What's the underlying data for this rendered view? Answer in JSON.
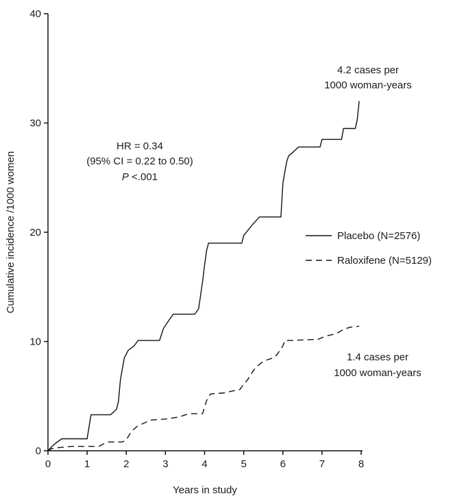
{
  "chart_data": {
    "type": "line",
    "title": "",
    "xlabel": "Years in study",
    "ylabel": "Cumulative incidence /1000 women",
    "xlim": [
      0,
      8
    ],
    "ylim": [
      0,
      40
    ],
    "x_ticks": [
      "0",
      "1",
      "2",
      "3",
      "4",
      "5",
      "6",
      "7",
      "8"
    ],
    "y_ticks": [
      "0",
      "10",
      "20",
      "30",
      "40"
    ],
    "grid": false,
    "legend_position": "right",
    "series": [
      {
        "name": "Placebo (N=2576)",
        "style": "solid",
        "color": "#111111",
        "points": [
          [
            0,
            0
          ],
          [
            0.1,
            0.4
          ],
          [
            0.2,
            0.7
          ],
          [
            0.35,
            1.1
          ],
          [
            1.0,
            1.1
          ],
          [
            1.05,
            2.2
          ],
          [
            1.1,
            3.3
          ],
          [
            1.6,
            3.3
          ],
          [
            1.75,
            3.8
          ],
          [
            1.8,
            4.5
          ],
          [
            1.85,
            6.5
          ],
          [
            1.9,
            7.5
          ],
          [
            1.95,
            8.5
          ],
          [
            2.05,
            9.2
          ],
          [
            2.2,
            9.6
          ],
          [
            2.3,
            10.1
          ],
          [
            2.85,
            10.1
          ],
          [
            2.95,
            11.2
          ],
          [
            3.1,
            12.0
          ],
          [
            3.2,
            12.5
          ],
          [
            3.75,
            12.5
          ],
          [
            3.85,
            13.0
          ],
          [
            3.95,
            15.5
          ],
          [
            4.0,
            17.0
          ],
          [
            4.05,
            18.3
          ],
          [
            4.1,
            19.0
          ],
          [
            4.95,
            19.0
          ],
          [
            5.0,
            19.7
          ],
          [
            5.2,
            20.6
          ],
          [
            5.4,
            21.4
          ],
          [
            5.95,
            21.4
          ],
          [
            6.0,
            24.5
          ],
          [
            6.05,
            25.5
          ],
          [
            6.1,
            26.5
          ],
          [
            6.15,
            27.0
          ],
          [
            6.25,
            27.3
          ],
          [
            6.4,
            27.8
          ],
          [
            6.95,
            27.8
          ],
          [
            7.0,
            28.5
          ],
          [
            7.5,
            28.5
          ],
          [
            7.55,
            29.5
          ],
          [
            7.85,
            29.5
          ],
          [
            7.9,
            30.3
          ],
          [
            7.95,
            32.0
          ]
        ]
      },
      {
        "name": "Raloxifene (N=5129)",
        "style": "dashed",
        "color": "#111111",
        "points": [
          [
            0,
            0
          ],
          [
            0.1,
            0.2
          ],
          [
            0.3,
            0.3
          ],
          [
            0.6,
            0.4
          ],
          [
            1.3,
            0.4
          ],
          [
            1.4,
            0.6
          ],
          [
            1.55,
            0.8
          ],
          [
            1.9,
            0.8
          ],
          [
            2.0,
            1.0
          ],
          [
            2.1,
            1.6
          ],
          [
            2.2,
            2.0
          ],
          [
            2.3,
            2.3
          ],
          [
            2.5,
            2.6
          ],
          [
            2.6,
            2.8
          ],
          [
            3.0,
            2.9
          ],
          [
            3.35,
            3.1
          ],
          [
            3.6,
            3.4
          ],
          [
            3.95,
            3.4
          ],
          [
            4.05,
            4.6
          ],
          [
            4.15,
            5.2
          ],
          [
            4.5,
            5.3
          ],
          [
            4.75,
            5.5
          ],
          [
            4.9,
            5.6
          ],
          [
            5.0,
            6.1
          ],
          [
            5.1,
            6.5
          ],
          [
            5.2,
            7.1
          ],
          [
            5.3,
            7.6
          ],
          [
            5.4,
            7.9
          ],
          [
            5.5,
            8.2
          ],
          [
            5.75,
            8.5
          ],
          [
            5.85,
            8.8
          ],
          [
            6.0,
            9.6
          ],
          [
            6.05,
            10.1
          ],
          [
            6.2,
            10.1
          ],
          [
            6.9,
            10.2
          ],
          [
            7.1,
            10.5
          ],
          [
            7.35,
            10.7
          ],
          [
            7.5,
            11.0
          ],
          [
            7.7,
            11.3
          ],
          [
            7.95,
            11.4
          ]
        ]
      }
    ],
    "annotations": {
      "hr_line1": "HR = 0.34",
      "hr_line2": "(95% CI = 0.22 to 0.50)",
      "hr_line3_p": "P",
      "hr_line3_rest": " <.001",
      "placebo_rate_line1": "4.2 cases per",
      "placebo_rate_line2": "1000 woman-years",
      "raloxifene_rate_line1": "1.4 cases per",
      "raloxifene_rate_line2": "1000 woman-years"
    }
  }
}
